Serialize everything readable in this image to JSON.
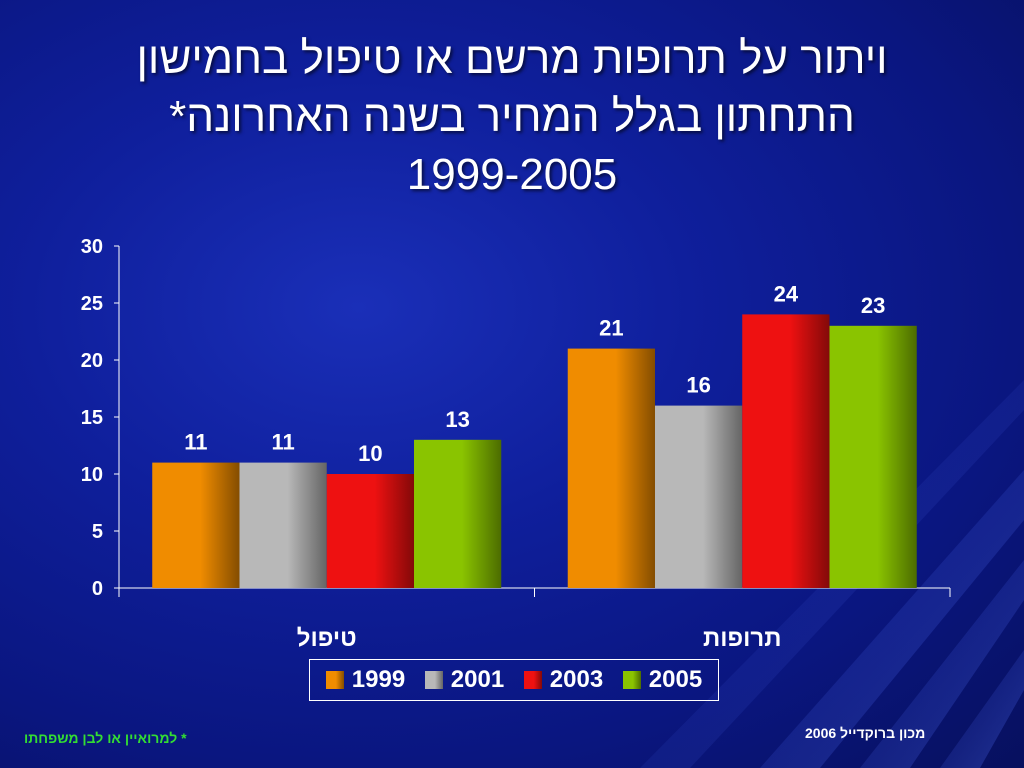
{
  "slide": {
    "title_line1": "ויתור על תרופות מרשם או טיפול בחמישון",
    "title_line2": "התחתון בגלל המחיר בשנה האחרונה*",
    "title_line3": "1999-2005",
    "footnote": "* למרואיין או לבן משפחתו",
    "source": "מכון ברוקדייל 2006"
  },
  "colors": {
    "background": "#0f1f9c",
    "text": "#ffffff",
    "footnote": "#33dd33"
  },
  "chart_data": {
    "type": "bar",
    "categories": [
      "טיפול",
      "תרופות"
    ],
    "series": [
      {
        "name": "1999",
        "values": [
          11,
          21
        ],
        "color": "#f08c00"
      },
      {
        "name": "2001",
        "values": [
          11,
          16
        ],
        "color": "#b8b8b8"
      },
      {
        "name": "2003",
        "values": [
          10,
          24
        ],
        "color": "#ee1111"
      },
      {
        "name": "2005",
        "values": [
          13,
          23
        ],
        "color": "#8ac400"
      }
    ],
    "yticks": [
      0,
      5,
      10,
      15,
      20,
      25,
      30
    ],
    "ylim": [
      0,
      30
    ],
    "data_labels": true,
    "grid": false,
    "legend_position": "bottom"
  }
}
